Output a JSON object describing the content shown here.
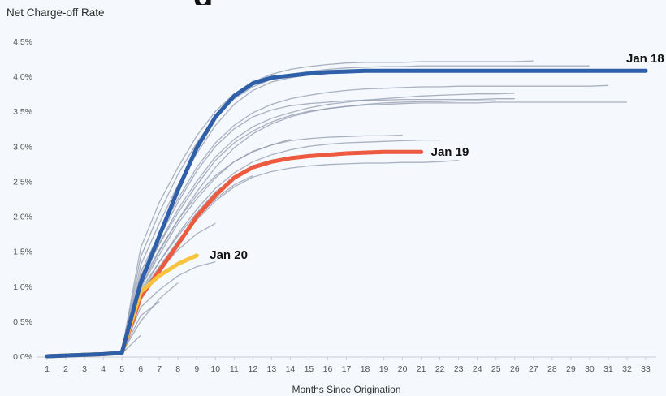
{
  "chart_data": {
    "type": "line",
    "title": "Net Charge-off Rate",
    "xlabel": "Months Since Origination",
    "ylabel": "",
    "x_ticks": [
      1,
      2,
      3,
      4,
      5,
      6,
      7,
      8,
      9,
      10,
      11,
      12,
      13,
      14,
      15,
      16,
      17,
      18,
      19,
      20,
      21,
      22,
      23,
      24,
      25,
      26,
      27,
      28,
      29,
      30,
      31,
      32,
      33
    ],
    "y_ticks": [
      "0.0%",
      "0.5%",
      "1.0%",
      "1.5%",
      "2.0%",
      "2.5%",
      "3.0%",
      "3.5%",
      "4.0%",
      "4.5%"
    ],
    "xlim": [
      1,
      33
    ],
    "ylim": [
      0,
      4.5
    ],
    "grid": false,
    "colors": {
      "background_lines": "#8f99ad",
      "jan18": "#2f5fa8",
      "jan19": "#ec5a3f",
      "jan20": "#f7c440"
    },
    "series": [
      {
        "name": "Jan 18",
        "highlight": true,
        "color": "#2f5fa8",
        "x": [
          1,
          2,
          3,
          4,
          5,
          6,
          7,
          8,
          9,
          10,
          11,
          12,
          13,
          14,
          15,
          16,
          17,
          18,
          19,
          20,
          21,
          22,
          23,
          24,
          25,
          26,
          27,
          28,
          29,
          30,
          31,
          32,
          33
        ],
        "y": [
          0.0,
          0.01,
          0.02,
          0.03,
          0.05,
          1.05,
          1.72,
          2.38,
          2.98,
          3.42,
          3.72,
          3.9,
          3.98,
          4.01,
          4.04,
          4.06,
          4.07,
          4.08,
          4.08,
          4.08,
          4.08,
          4.08,
          4.08,
          4.08,
          4.08,
          4.08,
          4.08,
          4.08,
          4.08,
          4.08,
          4.08,
          4.08,
          4.08
        ]
      },
      {
        "name": "Jan 19",
        "highlight": true,
        "color": "#ec5a3f",
        "x": [
          1,
          2,
          3,
          4,
          5,
          6,
          7,
          8,
          9,
          10,
          11,
          12,
          13,
          14,
          15,
          16,
          17,
          18,
          19,
          20,
          21
        ],
        "y": [
          0.0,
          0.01,
          0.02,
          0.03,
          0.05,
          0.85,
          1.22,
          1.6,
          2.0,
          2.3,
          2.55,
          2.7,
          2.78,
          2.83,
          2.86,
          2.88,
          2.9,
          2.91,
          2.92,
          2.92,
          2.92
        ]
      },
      {
        "name": "Jan 20",
        "highlight": true,
        "color": "#f7c440",
        "x": [
          1,
          2,
          3,
          4,
          5,
          6,
          7,
          8,
          9
        ],
        "y": [
          0.0,
          0.01,
          0.02,
          0.03,
          0.05,
          0.92,
          1.15,
          1.32,
          1.44
        ]
      },
      {
        "x": [
          1,
          2,
          3,
          4,
          5,
          6,
          7,
          8,
          9,
          10,
          11,
          12,
          13,
          14,
          15,
          16,
          17,
          18,
          19,
          20,
          21,
          22,
          23,
          24,
          25,
          26,
          27
        ],
        "y": [
          0.0,
          0.01,
          0.02,
          0.04,
          0.08,
          1.55,
          2.2,
          2.7,
          3.15,
          3.5,
          3.75,
          3.92,
          4.03,
          4.1,
          4.14,
          4.17,
          4.19,
          4.2,
          4.2,
          4.2,
          4.21,
          4.21,
          4.21,
          4.21,
          4.21,
          4.21,
          4.22
        ]
      },
      {
        "x": [
          1,
          2,
          3,
          4,
          5,
          6,
          7,
          8,
          9,
          10,
          11,
          12,
          13,
          14,
          15,
          16,
          17,
          18,
          19,
          20,
          21,
          22,
          23,
          24,
          25,
          26,
          27,
          28,
          29,
          30
        ],
        "y": [
          0.0,
          0.01,
          0.02,
          0.04,
          0.08,
          1.42,
          2.05,
          2.6,
          3.05,
          3.42,
          3.68,
          3.85,
          3.96,
          4.03,
          4.07,
          4.1,
          4.12,
          4.13,
          4.14,
          4.14,
          4.15,
          4.15,
          4.15,
          4.15,
          4.15,
          4.15,
          4.15,
          4.15,
          4.15,
          4.15
        ]
      },
      {
        "x": [
          1,
          2,
          3,
          4,
          5,
          6,
          7,
          8,
          9,
          10,
          11,
          12,
          13,
          14,
          15,
          16,
          17,
          18,
          19,
          20,
          21,
          22,
          23,
          24,
          25,
          26,
          27,
          28,
          29,
          30
        ],
        "y": [
          0.0,
          0.01,
          0.02,
          0.04,
          0.07,
          1.3,
          1.9,
          2.45,
          2.9,
          3.3,
          3.6,
          3.8,
          3.92,
          3.98,
          4.02,
          4.05,
          4.06,
          4.07,
          4.08,
          4.08,
          4.09,
          4.09,
          4.09,
          4.09,
          4.09,
          4.09,
          4.09,
          4.09,
          4.09,
          4.09
        ]
      },
      {
        "x": [
          1,
          2,
          3,
          4,
          5,
          6,
          7,
          8,
          9,
          10,
          11,
          12,
          13,
          14,
          15,
          16,
          17,
          18,
          19,
          20,
          21,
          22,
          23,
          24,
          25,
          26,
          27,
          28,
          29,
          30,
          31
        ],
        "y": [
          0.0,
          0.01,
          0.02,
          0.04,
          0.07,
          1.2,
          1.75,
          2.25,
          2.7,
          3.05,
          3.3,
          3.48,
          3.6,
          3.68,
          3.73,
          3.77,
          3.8,
          3.82,
          3.83,
          3.84,
          3.85,
          3.85,
          3.86,
          3.86,
          3.86,
          3.86,
          3.86,
          3.86,
          3.86,
          3.86,
          3.87
        ]
      },
      {
        "x": [
          1,
          2,
          3,
          4,
          5,
          6,
          7,
          8,
          9,
          10,
          11,
          12,
          13,
          14,
          15,
          16,
          17,
          18,
          19,
          20,
          21,
          22,
          23,
          24,
          25,
          26,
          27,
          28,
          29,
          30,
          31,
          32
        ],
        "y": [
          0.0,
          0.01,
          0.02,
          0.04,
          0.07,
          1.1,
          1.6,
          2.05,
          2.45,
          2.8,
          3.05,
          3.22,
          3.35,
          3.44,
          3.5,
          3.54,
          3.57,
          3.59,
          3.6,
          3.61,
          3.62,
          3.62,
          3.62,
          3.62,
          3.63,
          3.63,
          3.63,
          3.63,
          3.63,
          3.63,
          3.63,
          3.63
        ]
      },
      {
        "x": [
          1,
          2,
          3,
          4,
          5,
          6,
          7,
          8,
          9,
          10,
          11,
          12,
          13,
          14,
          15,
          16,
          17,
          18,
          19,
          20,
          21,
          22,
          23,
          24,
          25,
          26
        ],
        "y": [
          0.0,
          0.01,
          0.02,
          0.04,
          0.07,
          1.15,
          1.7,
          2.2,
          2.65,
          3.0,
          3.25,
          3.42,
          3.52,
          3.58,
          3.61,
          3.63,
          3.65,
          3.66,
          3.66,
          3.67,
          3.67,
          3.67,
          3.67,
          3.67,
          3.68,
          3.68
        ]
      },
      {
        "x": [
          1,
          2,
          3,
          4,
          5,
          6,
          7,
          8,
          9,
          10,
          11,
          12,
          13,
          14,
          15,
          16,
          17,
          18,
          19,
          20,
          21,
          22,
          23,
          24,
          25,
          26
        ],
        "y": [
          0.0,
          0.01,
          0.02,
          0.04,
          0.07,
          1.12,
          1.62,
          2.1,
          2.5,
          2.85,
          3.1,
          3.28,
          3.4,
          3.48,
          3.55,
          3.6,
          3.63,
          3.66,
          3.68,
          3.7,
          3.72,
          3.73,
          3.74,
          3.75,
          3.75,
          3.76
        ]
      },
      {
        "x": [
          1,
          2,
          3,
          4,
          5,
          6,
          7,
          8,
          9,
          10,
          11,
          12,
          13,
          14,
          15,
          16,
          17,
          18,
          19,
          20,
          21,
          22,
          23,
          24,
          25
        ],
        "y": [
          0.0,
          0.01,
          0.02,
          0.04,
          0.07,
          1.0,
          1.5,
          1.95,
          2.35,
          2.7,
          2.98,
          3.18,
          3.32,
          3.42,
          3.49,
          3.54,
          3.57,
          3.6,
          3.62,
          3.63,
          3.64,
          3.64,
          3.65,
          3.65,
          3.65
        ]
      },
      {
        "x": [
          1,
          2,
          3,
          4,
          5,
          6,
          7,
          8,
          9,
          10,
          11,
          12,
          13,
          14,
          15,
          16,
          17,
          18,
          19,
          20
        ],
        "y": [
          0.0,
          0.01,
          0.02,
          0.04,
          0.07,
          0.98,
          1.45,
          1.9,
          2.25,
          2.55,
          2.78,
          2.93,
          3.02,
          3.08,
          3.11,
          3.13,
          3.14,
          3.15,
          3.15,
          3.16
        ]
      },
      {
        "x": [
          1,
          2,
          3,
          4,
          5,
          6,
          7,
          8,
          9,
          10,
          11,
          12,
          13,
          14,
          15,
          16,
          17,
          18,
          19,
          20,
          21,
          22
        ],
        "y": [
          0.0,
          0.01,
          0.02,
          0.04,
          0.06,
          0.9,
          1.35,
          1.75,
          2.1,
          2.4,
          2.62,
          2.78,
          2.88,
          2.95,
          3.0,
          3.03,
          3.05,
          3.06,
          3.07,
          3.08,
          3.09,
          3.09
        ]
      },
      {
        "x": [
          1,
          2,
          3,
          4,
          5,
          6,
          7,
          8,
          9,
          10,
          11,
          12,
          13,
          14,
          15,
          16,
          17,
          18,
          19,
          20,
          21,
          22,
          23
        ],
        "y": [
          0.0,
          0.01,
          0.02,
          0.04,
          0.06,
          0.8,
          1.22,
          1.6,
          1.95,
          2.22,
          2.42,
          2.56,
          2.64,
          2.69,
          2.72,
          2.74,
          2.75,
          2.76,
          2.76,
          2.77,
          2.77,
          2.78,
          2.8
        ]
      },
      {
        "x": [
          1,
          2,
          3,
          4,
          5,
          6,
          7,
          8,
          9,
          10,
          11,
          12,
          13,
          14
        ],
        "y": [
          0.0,
          0.01,
          0.02,
          0.04,
          0.06,
          1.05,
          1.52,
          1.95,
          2.3,
          2.58,
          2.78,
          2.92,
          3.02,
          3.1
        ]
      },
      {
        "x": [
          1,
          2,
          3,
          4,
          5,
          6,
          7,
          8,
          9,
          10,
          11,
          12,
          13
        ],
        "y": [
          0.0,
          0.01,
          0.02,
          0.04,
          0.06,
          0.95,
          1.35,
          1.72,
          2.05,
          2.35,
          2.55,
          2.7,
          2.8
        ]
      },
      {
        "x": [
          1,
          2,
          3,
          4,
          5,
          6,
          7,
          8,
          9,
          10,
          11,
          12
        ],
        "y": [
          0.0,
          0.01,
          0.02,
          0.04,
          0.06,
          0.9,
          1.28,
          1.65,
          1.98,
          2.25,
          2.45,
          2.58
        ]
      },
      {
        "x": [
          1,
          2,
          3,
          4,
          5,
          6,
          7,
          8,
          9,
          10
        ],
        "y": [
          0.0,
          0.01,
          0.02,
          0.04,
          0.06,
          0.88,
          1.22,
          1.52,
          1.75,
          1.9
        ]
      },
      {
        "x": [
          1,
          2,
          3,
          4,
          5,
          6,
          7,
          8,
          9,
          10
        ],
        "y": [
          0.0,
          0.01,
          0.02,
          0.04,
          0.05,
          0.7,
          0.95,
          1.15,
          1.28,
          1.35
        ]
      },
      {
        "x": [
          1,
          2,
          3,
          4,
          5,
          6,
          7,
          8
        ],
        "y": [
          0.0,
          0.01,
          0.02,
          0.03,
          0.05,
          0.5,
          0.82,
          1.05
        ]
      },
      {
        "x": [
          1,
          2,
          3,
          4,
          5,
          6,
          7
        ],
        "y": [
          0.0,
          0.01,
          0.02,
          0.03,
          0.05,
          0.58,
          0.78
        ]
      },
      {
        "x": [
          1,
          2,
          3,
          4,
          5,
          6
        ],
        "y": [
          0.0,
          0.01,
          0.02,
          0.03,
          0.04,
          0.3
        ]
      }
    ],
    "labels": {
      "jan18": "Jan 18",
      "jan19": "Jan 19",
      "jan20": "Jan 20"
    }
  },
  "header_fragment": "g"
}
